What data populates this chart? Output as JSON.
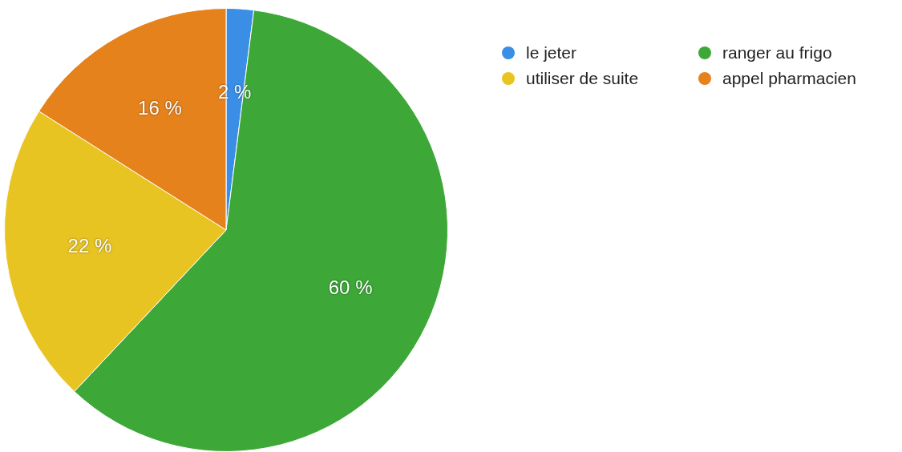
{
  "chart_data": {
    "type": "pie",
    "categories": [
      "le jeter",
      "ranger au frigo",
      "utiliser de suite",
      "appel pharmacien"
    ],
    "values": [
      2,
      60,
      22,
      16
    ],
    "colors": [
      "#3a8ee6",
      "#3da838",
      "#e8c422",
      "#e6821c"
    ],
    "value_labels": [
      "2 %",
      "60 %",
      "22 %",
      "16 %"
    ],
    "legend": "top right"
  }
}
